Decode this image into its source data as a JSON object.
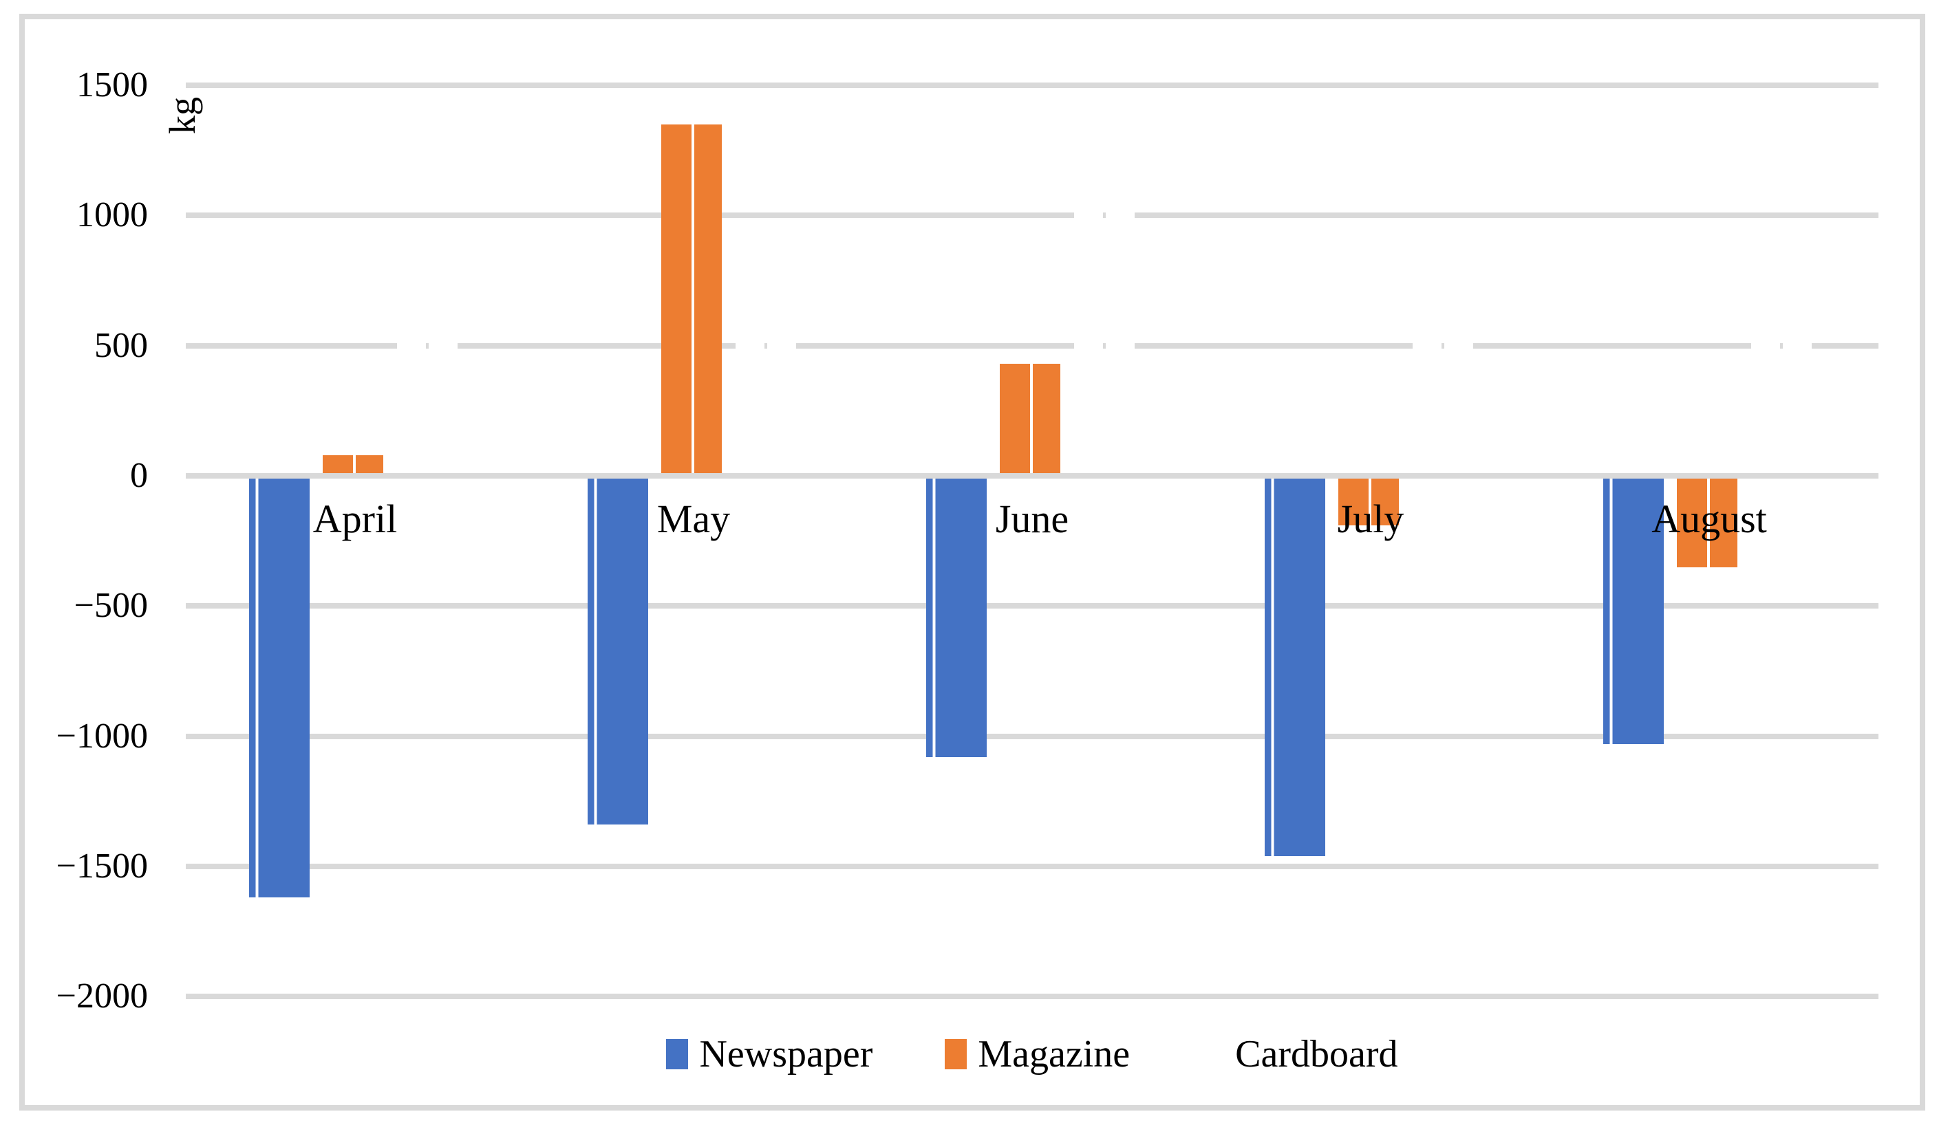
{
  "chart_data": {
    "type": "bar",
    "title": "",
    "ylabel": "kg",
    "xlabel": "",
    "categories": [
      "April",
      "May",
      "June",
      "July",
      "August"
    ],
    "series": [
      {
        "name": "Newspaper",
        "color": "#4472C4",
        "values": [
          -1620,
          -1340,
          -1080,
          -1460,
          -1030
        ]
      },
      {
        "name": "Magazine",
        "color": "#ED7D31",
        "values": [
          80,
          1350,
          430,
          -190,
          -350
        ]
      },
      {
        "name": "Cardboard",
        "color": "#FFFFFF",
        "approx": true,
        "values": [
          700,
          700,
          1100,
          700,
          700
        ],
        "note": "bars filled white (invisible on white background); visible only as gaps cut into gridlines"
      }
    ],
    "yticks": [
      "1500",
      "1000",
      "500",
      "0",
      "−500",
      "−1000",
      "−1500",
      "−2000"
    ],
    "ytick_values": [
      1500,
      1000,
      500,
      0,
      -500,
      -1000,
      -1500,
      -2000
    ],
    "ylim": [
      -2000,
      1500
    ],
    "grid": true,
    "legend": [
      "Newspaper",
      "Magazine",
      "Cardboard"
    ],
    "legend_position": "bottom",
    "colors": {
      "newspaper": "#4472C4",
      "magazine": "#ED7D31",
      "cardboard": "#FFFFFF",
      "gridline": "#D9D9D9",
      "frame_border": "#D9D9D9",
      "text": "#000000",
      "background": "#FFFFFF"
    }
  }
}
